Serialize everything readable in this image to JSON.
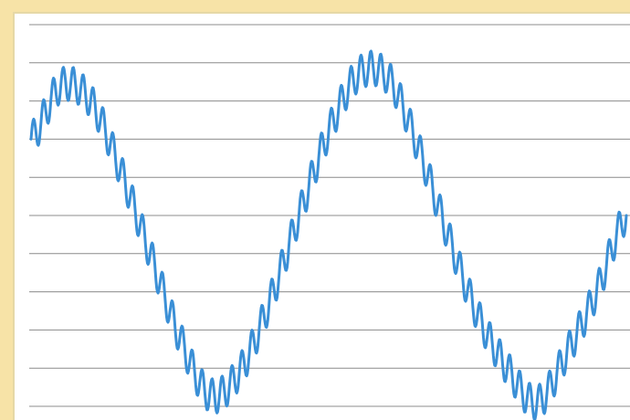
{
  "chart_data": {
    "type": "line",
    "title": "",
    "xlabel": "",
    "ylabel": "",
    "grid": true,
    "gridline_count": 11,
    "ylim": [
      -5,
      5
    ],
    "xlim": [
      0,
      1
    ],
    "series": [
      {
        "color": "#3a8fd6",
        "x": [
          0.0,
          0.05,
          0.1,
          0.15,
          0.2,
          0.25,
          0.3,
          0.35,
          0.4,
          0.45,
          0.5,
          0.55,
          0.6,
          0.65,
          0.7,
          0.75,
          0.8,
          0.85,
          0.9,
          0.95,
          1.0
        ],
        "values": [
          2.0,
          3.4,
          3.0,
          1.2,
          -1.0,
          -3.2,
          -4.7,
          -4.1,
          -2.3,
          0.0,
          2.2,
          3.7,
          3.6,
          1.8,
          -0.5,
          -2.6,
          -4.0,
          -4.9,
          -3.6,
          -2.0,
          0.0
        ],
        "ripple_amplitude": 0.45,
        "ripple_cycles": 60
      }
    ]
  },
  "colors": {
    "background": "#f7e3a7",
    "panel": "#ffffff",
    "gridline": "#8c8c8c",
    "series": "#3a8fd6"
  }
}
